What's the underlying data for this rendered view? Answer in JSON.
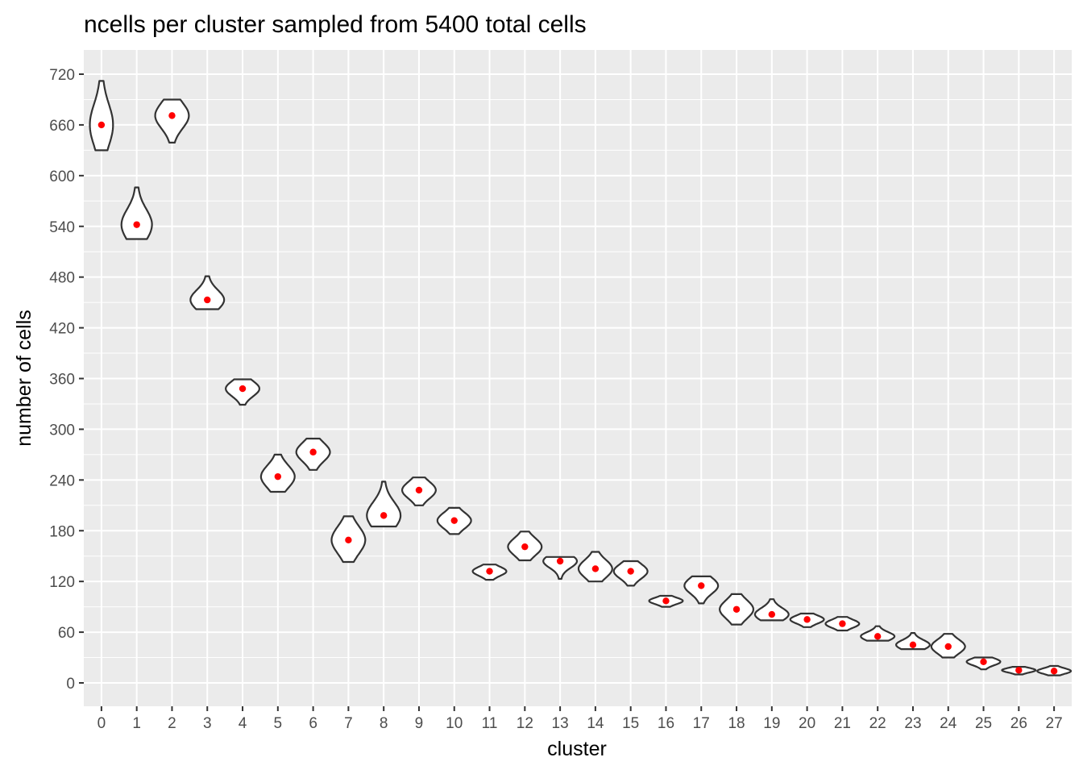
{
  "chart_data": {
    "type": "violin",
    "title": "ncells per cluster sampled from 5400 total cells",
    "xlabel": "cluster",
    "ylabel": "number of cells",
    "ylim": [
      -28,
      758
    ],
    "yticks": [
      0,
      60,
      120,
      180,
      240,
      300,
      360,
      420,
      480,
      540,
      600,
      660,
      720
    ],
    "grid": true,
    "legend": "none",
    "colors": {
      "panel": "#ebebeb",
      "grid_major": "#ffffff",
      "violin_stroke": "#333333",
      "point": "#ff0000"
    },
    "categories": [
      "0",
      "1",
      "2",
      "3",
      "4",
      "5",
      "6",
      "7",
      "8",
      "9",
      "10",
      "11",
      "12",
      "13",
      "14",
      "15",
      "16",
      "17",
      "18",
      "19",
      "20",
      "21",
      "22",
      "23",
      "24",
      "25",
      "26",
      "27"
    ],
    "violins": [
      {
        "cluster": "0",
        "min": 630,
        "max": 712,
        "point": 660
      },
      {
        "cluster": "1",
        "min": 525,
        "max": 586,
        "point": 542
      },
      {
        "cluster": "2",
        "min": 639,
        "max": 690,
        "point": 671
      },
      {
        "cluster": "3",
        "min": 442,
        "max": 481,
        "point": 453
      },
      {
        "cluster": "4",
        "min": 329,
        "max": 359,
        "point": 348
      },
      {
        "cluster": "5",
        "min": 226,
        "max": 270,
        "point": 244
      },
      {
        "cluster": "6",
        "min": 252,
        "max": 289,
        "point": 273
      },
      {
        "cluster": "7",
        "min": 143,
        "max": 197,
        "point": 169
      },
      {
        "cluster": "8",
        "min": 185,
        "max": 238,
        "point": 198
      },
      {
        "cluster": "9",
        "min": 210,
        "max": 243,
        "point": 228
      },
      {
        "cluster": "10",
        "min": 176,
        "max": 207,
        "point": 192
      },
      {
        "cluster": "11",
        "min": 122,
        "max": 140,
        "point": 132
      },
      {
        "cluster": "12",
        "min": 145,
        "max": 179,
        "point": 161
      },
      {
        "cluster": "13",
        "min": 123,
        "max": 149,
        "point": 144
      },
      {
        "cluster": "14",
        "min": 120,
        "max": 155,
        "point": 135
      },
      {
        "cluster": "15",
        "min": 115,
        "max": 144,
        "point": 132
      },
      {
        "cluster": "16",
        "min": 90,
        "max": 103,
        "point": 97
      },
      {
        "cluster": "17",
        "min": 94,
        "max": 126,
        "point": 115
      },
      {
        "cluster": "18",
        "min": 69,
        "max": 105,
        "point": 87
      },
      {
        "cluster": "19",
        "min": 74,
        "max": 99,
        "point": 81
      },
      {
        "cluster": "20",
        "min": 66,
        "max": 82,
        "point": 75
      },
      {
        "cluster": "21",
        "min": 62,
        "max": 78,
        "point": 70
      },
      {
        "cluster": "22",
        "min": 50,
        "max": 67,
        "point": 55
      },
      {
        "cluster": "23",
        "min": 40,
        "max": 59,
        "point": 45
      },
      {
        "cluster": "24",
        "min": 30,
        "max": 58,
        "point": 43
      },
      {
        "cluster": "25",
        "min": 16,
        "max": 30,
        "point": 25
      },
      {
        "cluster": "26",
        "min": 10,
        "max": 19,
        "point": 15
      },
      {
        "cluster": "27",
        "min": 9,
        "max": 20,
        "point": 14
      }
    ]
  }
}
